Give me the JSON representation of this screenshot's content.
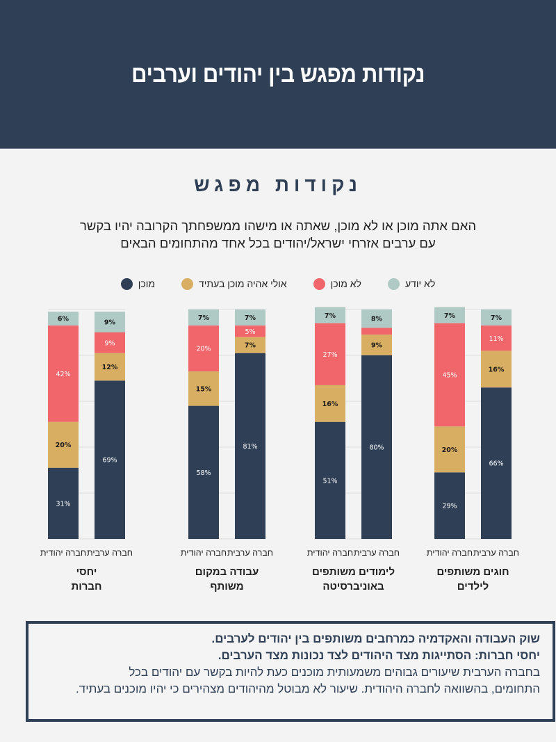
{
  "header": {
    "title": "נקודות מפגש בין יהודים וערבים"
  },
  "section_title": "נקודות מפגש",
  "question": {
    "line1": "האם אתה מוכן או לא מוכן, שאתה או מישהו ממשפחתך הקרובה יהיו בקשר",
    "line2": "עם ערבים אזרחי ישראל/יהודים בכל אחד מהתחומים הבאים"
  },
  "legend": [
    {
      "label": "לא יודע",
      "color": "#afc9c4"
    },
    {
      "label": "לא מוכן",
      "color": "#f0666a"
    },
    {
      "label": "אולי אהיה מוכן בעתיד",
      "color": "#d8ae62"
    },
    {
      "label": "מוכן",
      "color": "#2f4056"
    }
  ],
  "callout": {
    "lines": [
      "שוק העבודה והאקדמיה כמרחבים משותפים בין יהודים לערבים.",
      "יחסי חברות: הסתייגות מצד היהודים לצד נכונות מצד הערבים.",
      "בחברה הערבית שיעורים גבוהים משמעותית מוכנים כעת להיות בקשר עם יהודים בכל",
      "התחומים, בהשוואה לחברה היהודית. שיעור לא מבוטל מהיהודים מצהירים כי יהיו מוכנים בעתיד."
    ]
  },
  "chart_data": {
    "type": "bar",
    "stacked": true,
    "unit": "%",
    "ylim": [
      0,
      100
    ],
    "grid": true,
    "legend_position": "top",
    "series_order": [
      "מוכן",
      "אולי אהיה מוכן בעתיד",
      "לא מוכן",
      "לא יודע"
    ],
    "series_colors": {
      "מוכן": "#2f4056",
      "אולי אהיה מוכן בעתיד": "#d8ae62",
      "לא מוכן": "#f0666a",
      "לא יודע": "#afc9c4"
    },
    "label_colors": {
      "מוכן": "#ffffff",
      "אולי אהיה מוכן בעתיד": "#1a1a1a",
      "לא מוכן": "#ffffff",
      "לא יודע": "#1a1a1a"
    },
    "groups": [
      {
        "title": [
          "יחסי",
          "חברות"
        ],
        "bars": [
          {
            "label": "חברה יהודית",
            "values": [
              31,
              20,
              42,
              6
            ],
            "labels": [
              "31%",
              "20%",
              "42%",
              "6%"
            ]
          },
          {
            "label": "חברה ערבית",
            "values": [
              69,
              12,
              9,
              9
            ],
            "labels": [
              "69%",
              "12%",
              "9%",
              "9%"
            ]
          }
        ]
      },
      {
        "title": [
          "עבודה במקום",
          "משותף"
        ],
        "bars": [
          {
            "label": "חברה יהודית",
            "values": [
              58,
              15,
              20,
              7
            ],
            "labels": [
              "58%",
              "15%",
              "20%",
              "7%"
            ]
          },
          {
            "label": "חברה ערבית",
            "values": [
              81,
              7,
              5,
              7
            ],
            "labels": [
              "81%",
              "7%",
              "5%",
              "7%"
            ]
          }
        ]
      },
      {
        "title": [
          "לימודים משותפים",
          "באוניברסיטה"
        ],
        "bars": [
          {
            "label": "חברה יהודית",
            "values": [
              51,
              16,
              27,
              7
            ],
            "labels": [
              "51%",
              "16%",
              "27%",
              "7%"
            ]
          },
          {
            "label": "חברה ערבית",
            "values": [
              80,
              9,
              3,
              8
            ],
            "labels": [
              "80%",
              "9%",
              "",
              "8%"
            ]
          }
        ]
      },
      {
        "title": [
          "חוגים משותפים",
          "לילדים"
        ],
        "bars": [
          {
            "label": "חברה יהודית",
            "values": [
              29,
              20,
              45,
              7
            ],
            "labels": [
              "29%",
              "20%",
              "45%",
              "7%"
            ]
          },
          {
            "label": "חברה ערבית",
            "values": [
              66,
              16,
              11,
              7
            ],
            "labels": [
              "66%",
              "16%",
              "11%",
              "7%"
            ]
          }
        ]
      }
    ]
  }
}
